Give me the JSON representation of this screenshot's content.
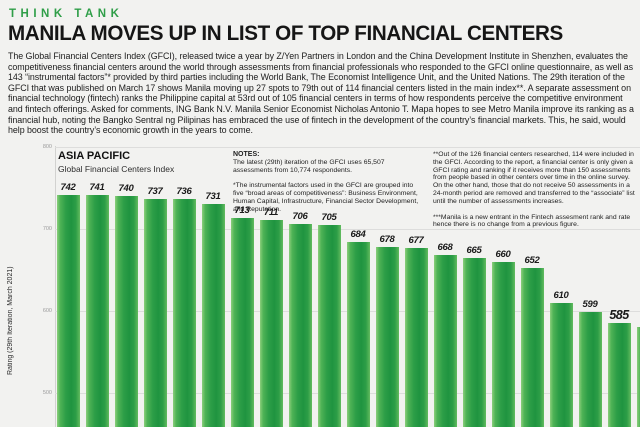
{
  "header": {
    "kicker": "THINK TANK",
    "headline": "MANILA MOVES UP IN LIST OF TOP FINANCIAL CENTERS",
    "intro": "The Global Financial Centers Index (GFCI), released twice a year by Z/Yen Partners in London and the China Development Institute in Shenzhen, evaluates the competitiveness financial centers around the world through assessments from financial professionals who responded to the GFCI online questionnaire, as well as 143 “instrumental factors”* provided by third parties including the World Bank, The Economist Intelligence Unit, and the United Nations. The 29th iteration of the GFCI that was published on March 17 shows Manila moving up 27 spots to 79th out of 114 financial centers listed in the main index**. A separate assessment on financial technology (fintech) ranks the Philippine capital at 53rd out of 105 financial centers in terms of how respondents perceive the competitive environment and fintech offerings. Asked for comments, ING Bank N.V. Manila Senior Economist Nicholas Antonio T. Mapa hopes to see Metro Manila improve its ranking as a financial hub, noting the Bangko Sentral ng Pilipinas has embraced the use of fintech in the development of the country’s financial markets. This, he said, would help boost the country’s economic growth in the years to come."
  },
  "notes": {
    "heading": "NOTES:",
    "col1": [
      "The latest (29th) iteration of the GFCI uses 65,507 assessments from 10,774 respondents.",
      "*The instrumental factors used in the GFCI are grouped into five “broad areas of competitiveness”: Business Environment, Human Capital, Infrastructure, Financial Sector Development, and Reputation."
    ],
    "col2": [
      "**Out of the 126 financial centers researched, 114 were included in the GFCI. According to the report, a financial center is only given a GFCI rating and ranking if it receives more than 150 assessments from people based in other centers over time in the online survey. On the other hand, those that do not receive 50 assessments in a 24-month period are removed and transferred to the “associate” list until the number of assessments increases.",
      "***Manila is a new entrant in the Fintech assesment rank and rate hence there is no change from a previous figure."
    ]
  },
  "colors": {
    "kicker_green": "#2f9e48",
    "bar_green": "#2d9e47",
    "bar_green_light": "#8ccf7c",
    "background": "#f2f2f0",
    "gridline": "#dddddc"
  },
  "chart_data": {
    "type": "bar",
    "title": "ASIA PACIFIC",
    "subtitle": "Global Financial Centers Index",
    "ylabel": "Rating (29th Iteration, March 2021)",
    "xlabel": "",
    "y_ticks": [
      800,
      700,
      600,
      500
    ],
    "ylim_visible": [
      460,
      800
    ],
    "grid": true,
    "categories_visible": false,
    "bars": [
      {
        "label": "742",
        "value": 742
      },
      {
        "label": "741",
        "value": 741
      },
      {
        "label": "740",
        "value": 740
      },
      {
        "label": "737",
        "value": 737
      },
      {
        "label": "736",
        "value": 736
      },
      {
        "label": "731",
        "value": 731
      },
      {
        "label": "713",
        "value": 713
      },
      {
        "label": "711",
        "value": 711
      },
      {
        "label": "706",
        "value": 706
      },
      {
        "label": "705",
        "value": 705
      },
      {
        "label": "684",
        "value": 684
      },
      {
        "label": "678",
        "value": 678
      },
      {
        "label": "677",
        "value": 677
      },
      {
        "label": "668",
        "value": 668
      },
      {
        "label": "665",
        "value": 665
      },
      {
        "label": "660",
        "value": 660
      },
      {
        "label": "652",
        "value": 652
      },
      {
        "label": "610",
        "value": 610
      },
      {
        "label": "599",
        "value": 599
      },
      {
        "label": "585",
        "value": 585,
        "highlight": true
      },
      {
        "label": "",
        "value": 580,
        "partial": true
      }
    ]
  }
}
